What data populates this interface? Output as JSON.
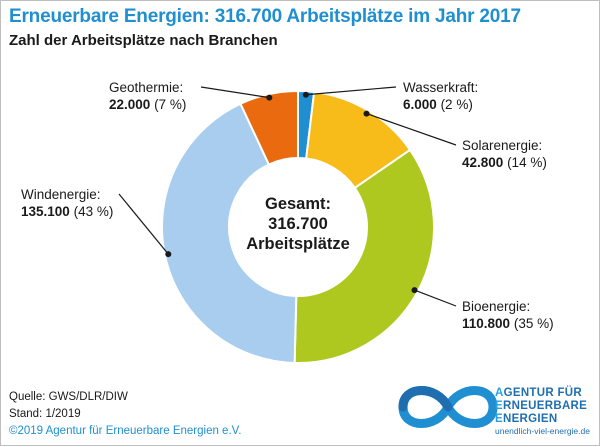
{
  "header": {
    "title": "Erneuerbare Energien: 316.700 Arbeitsplätze im Jahr 2017",
    "subtitle": "Zahl der Arbeitsplätze nach Branchen"
  },
  "center": {
    "line1": "Gesamt:",
    "line2": "316.700",
    "line3": "Arbeitsplätze"
  },
  "chart_data": {
    "type": "pie",
    "title": "Erneuerbare Energien: 316.700 Arbeitsplätze im Jahr 2017",
    "subtitle": "Zahl der Arbeitsplätze nach Branchen",
    "total": 316700,
    "slices": [
      {
        "name": "Wasserkraft:",
        "value": 6000,
        "value_label": "6.000",
        "percent_label": "(2 %)",
        "color": "#1f8fd1"
      },
      {
        "name": "Solarenergie:",
        "value": 42800,
        "value_label": "42.800",
        "percent_label": "(14 %)",
        "color": "#f7bb1a"
      },
      {
        "name": "Bioenergie:",
        "value": 110800,
        "value_label": "110.800",
        "percent_label": "(35 %)",
        "color": "#afc81f"
      },
      {
        "name": "Windenergie:",
        "value": 135100,
        "value_label": "135.100",
        "percent_label": "(43 %)",
        "color": "#a8cdee"
      },
      {
        "name": "Geothermie:",
        "value": 22000,
        "value_label": "22.000",
        "percent_label": "(7 %)",
        "color": "#ea6a0f"
      }
    ]
  },
  "footer": {
    "source": "Quelle: GWS/DLR/DIW",
    "date": "Stand: 1/2019",
    "copyright": "©2019 Agentur für Erneuerbare Energien e.V."
  },
  "logo": {
    "line1_a": "A",
    "line1_b": "GENTUR FÜR",
    "line2_a": "E",
    "line2_b": "RNEUERBARE",
    "line3_a": "E",
    "line3_b": "NERGIEN",
    "url": "unendlich-viel-energie.de",
    "color": "#1f6fb0",
    "icon": "infinity-icon"
  }
}
